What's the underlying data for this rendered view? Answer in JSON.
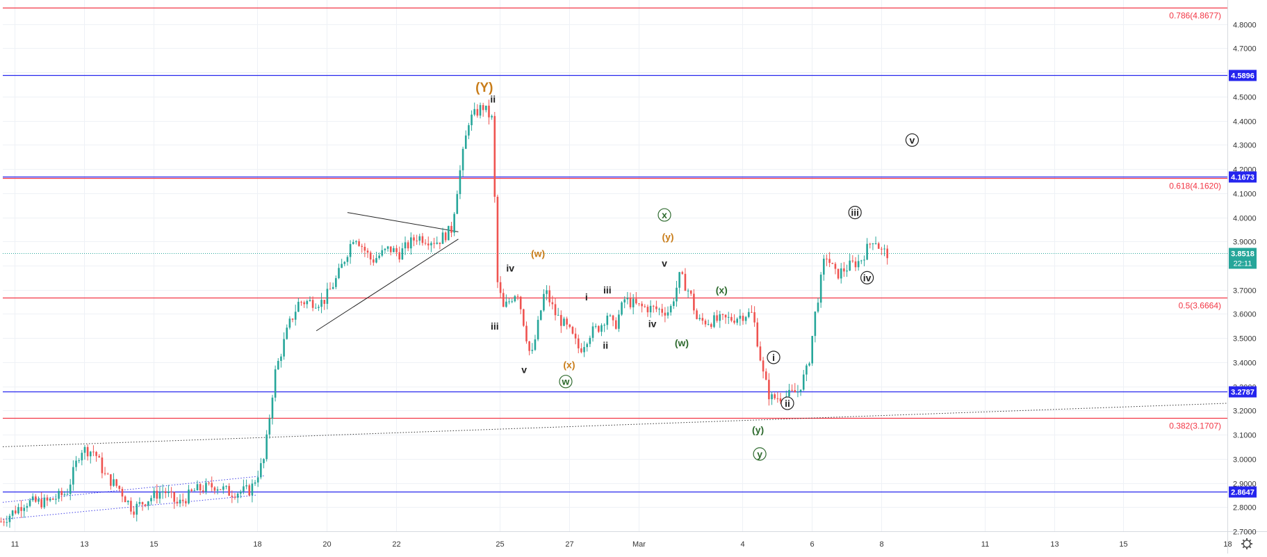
{
  "chart_data": {
    "type": "candlestick",
    "x_axis": {
      "ticks": [
        {
          "label": "11",
          "day": 0
        },
        {
          "label": "13",
          "day": 2
        },
        {
          "label": "15",
          "day": 4
        },
        {
          "label": "18",
          "day": 7
        },
        {
          "label": "20",
          "day": 9
        },
        {
          "label": "22",
          "day": 11
        },
        {
          "label": "25",
          "day": 14
        },
        {
          "label": "27",
          "day": 16
        },
        {
          "label": "Mar",
          "day": 18
        },
        {
          "label": "4",
          "day": 21
        },
        {
          "label": "6",
          "day": 23
        },
        {
          "label": "8",
          "day": 25
        },
        {
          "label": "11",
          "day": 28
        },
        {
          "label": "13",
          "day": 30
        },
        {
          "label": "15",
          "day": 32
        },
        {
          "label": "18",
          "day": 35
        }
      ],
      "range": [
        -0.35,
        35
      ]
    },
    "y_axis": {
      "range": [
        2.7,
        4.9
      ],
      "ticks": [
        "2.7000",
        "2.8000",
        "2.9000",
        "3.0000",
        "3.1000",
        "3.2000",
        "3.3000",
        "3.4000",
        "3.5000",
        "3.6000",
        "3.7000",
        "3.8000",
        "3.9000",
        "4.0000",
        "4.1000",
        "4.2000",
        "4.3000",
        "4.4000",
        "4.5000",
        "4.6000",
        "4.7000",
        "4.8000"
      ]
    },
    "price_path": [
      [
        -0.4,
        2.74
      ],
      [
        0.3,
        2.82
      ],
      [
        0.9,
        2.82
      ],
      [
        1.5,
        2.86
      ],
      [
        1.9,
        3.04
      ],
      [
        2.3,
        3.03
      ],
      [
        2.6,
        2.93
      ],
      [
        3.0,
        2.88
      ],
      [
        3.4,
        2.79
      ],
      [
        3.8,
        2.83
      ],
      [
        4.3,
        2.87
      ],
      [
        4.7,
        2.81
      ],
      [
        5.2,
        2.87
      ],
      [
        5.8,
        2.89
      ],
      [
        6.2,
        2.86
      ],
      [
        6.8,
        2.87
      ],
      [
        7.2,
        3.0
      ],
      [
        7.5,
        3.35
      ],
      [
        7.9,
        3.55
      ],
      [
        8.2,
        3.65
      ],
      [
        8.9,
        3.65
      ],
      [
        9.3,
        3.75
      ],
      [
        9.8,
        3.93
      ],
      [
        10.3,
        3.82
      ],
      [
        10.8,
        3.87
      ],
      [
        11.1,
        3.85
      ],
      [
        11.6,
        3.92
      ],
      [
        12.2,
        3.9
      ],
      [
        12.6,
        3.95
      ],
      [
        12.8,
        4.15
      ],
      [
        13.1,
        4.4
      ],
      [
        13.5,
        4.46
      ],
      [
        13.8,
        4.4
      ],
      [
        13.9,
        3.75
      ],
      [
        14.1,
        3.62
      ],
      [
        14.5,
        3.7
      ],
      [
        14.9,
        3.41
      ],
      [
        15.3,
        3.7
      ],
      [
        15.6,
        3.6
      ],
      [
        16.0,
        3.53
      ],
      [
        16.3,
        3.45
      ],
      [
        16.6,
        3.52
      ],
      [
        16.9,
        3.55
      ],
      [
        17.1,
        3.6
      ],
      [
        17.3,
        3.54
      ],
      [
        17.6,
        3.66
      ],
      [
        18.0,
        3.63
      ],
      [
        18.5,
        3.62
      ],
      [
        18.9,
        3.61
      ],
      [
        19.2,
        3.76
      ],
      [
        19.5,
        3.68
      ],
      [
        19.7,
        3.57
      ],
      [
        20.1,
        3.57
      ],
      [
        20.7,
        3.58
      ],
      [
        21.1,
        3.6
      ],
      [
        21.3,
        3.6
      ],
      [
        21.6,
        3.35
      ],
      [
        21.8,
        3.25
      ],
      [
        22.3,
        3.26
      ],
      [
        22.6,
        3.28
      ],
      [
        22.9,
        3.38
      ],
      [
        23.1,
        3.6
      ],
      [
        23.4,
        3.85
      ],
      [
        23.7,
        3.76
      ],
      [
        24.1,
        3.8
      ],
      [
        24.4,
        3.82
      ],
      [
        24.8,
        3.92
      ],
      [
        25.0,
        3.86
      ],
      [
        25.2,
        3.85
      ]
    ],
    "horizontal_levels": [
      {
        "value": 4.8677,
        "color": "#f23645",
        "label": "0.786(4.8677)",
        "label_style": "text"
      },
      {
        "value": 4.5896,
        "color": "#2525ee",
        "label": "4.5896",
        "label_style": "box"
      },
      {
        "value": 4.1673,
        "color": "#2525ee",
        "label": "4.1673",
        "label_style": "box"
      },
      {
        "value": 4.162,
        "color": "#f23645",
        "label": "0.618(4.1620)",
        "label_style": "text"
      },
      {
        "value": 3.6664,
        "color": "#f23645",
        "label": "0.5(3.6664)",
        "label_style": "text"
      },
      {
        "value": 3.2787,
        "color": "#2525ee",
        "label": "3.2787",
        "label_style": "box"
      },
      {
        "value": 3.1707,
        "color": "#f23645",
        "label": "0.382(3.1707)",
        "label_style": "text"
      },
      {
        "value": 2.8647,
        "color": "#2525ee",
        "label": "2.8647",
        "label_style": "box"
      }
    ],
    "current_price": {
      "value": 3.8518,
      "label": "3.8518",
      "countdown": "22:11",
      "color": "#26a69a"
    },
    "trendlines": [
      {
        "from": [
          -0.35,
          3.05
        ],
        "to": [
          35,
          3.23
        ],
        "color": "#333333",
        "style": "dotted"
      },
      {
        "from": [
          -0.35,
          2.75
        ],
        "to": [
          7.0,
          2.85
        ],
        "color": "#3f3fe6",
        "style": "dotted"
      },
      {
        "from": [
          -0.35,
          2.82
        ],
        "to": [
          7.2,
          2.93
        ],
        "color": "#3f3fe6",
        "style": "dotted"
      },
      {
        "from": [
          8.7,
          3.53
        ],
        "to": [
          12.8,
          3.91
        ],
        "color": "#222222",
        "style": "solid"
      },
      {
        "from": [
          9.6,
          4.02
        ],
        "to": [
          12.8,
          3.94
        ],
        "color": "#222222",
        "style": "solid"
      }
    ],
    "wave_labels": [
      {
        "text": "(Y)",
        "day": 13.55,
        "price": 4.54,
        "color": "#c97d1a",
        "style": "plain",
        "size": 19
      },
      {
        "text": "ii",
        "day": 13.8,
        "price": 4.49,
        "color": "#222222",
        "style": "plain",
        "size": 14
      },
      {
        "text": "iv",
        "day": 14.3,
        "price": 3.79,
        "color": "#222222",
        "style": "plain",
        "size": 14
      },
      {
        "text": "iii",
        "day": 13.85,
        "price": 3.55,
        "color": "#222222",
        "style": "plain",
        "size": 14
      },
      {
        "text": "(w)",
        "day": 15.1,
        "price": 3.85,
        "color": "#c97d1a",
        "style": "plain",
        "size": 14
      },
      {
        "text": "v",
        "day": 14.7,
        "price": 3.37,
        "color": "#222222",
        "style": "plain",
        "size": 14
      },
      {
        "text": "(x)",
        "day": 16.0,
        "price": 3.39,
        "color": "#c97d1a",
        "style": "plain",
        "size": 14
      },
      {
        "text": "w",
        "day": 15.9,
        "price": 3.32,
        "color": "#2e6a2e",
        "style": "circle",
        "size": 14
      },
      {
        "text": "i",
        "day": 16.5,
        "price": 3.67,
        "color": "#222222",
        "style": "plain",
        "size": 14
      },
      {
        "text": "iii",
        "day": 17.1,
        "price": 3.7,
        "color": "#222222",
        "style": "plain",
        "size": 14
      },
      {
        "text": "ii",
        "day": 17.05,
        "price": 3.47,
        "color": "#222222",
        "style": "plain",
        "size": 14
      },
      {
        "text": "iv",
        "day": 18.4,
        "price": 3.56,
        "color": "#222222",
        "style": "plain",
        "size": 14
      },
      {
        "text": "v",
        "day": 18.75,
        "price": 3.81,
        "color": "#222222",
        "style": "plain",
        "size": 14
      },
      {
        "text": "x",
        "day": 18.75,
        "price": 4.01,
        "color": "#2e6a2e",
        "style": "circle",
        "size": 14
      },
      {
        "text": "(y)",
        "day": 18.85,
        "price": 3.92,
        "color": "#c97d1a",
        "style": "plain",
        "size": 14
      },
      {
        "text": "(w)",
        "day": 19.25,
        "price": 3.48,
        "color": "#2e6a2e",
        "style": "plain",
        "size": 14
      },
      {
        "text": "(x)",
        "day": 20.4,
        "price": 3.7,
        "color": "#2e6a2e",
        "style": "plain",
        "size": 14
      },
      {
        "text": "i",
        "day": 21.9,
        "price": 3.42,
        "color": "#222222",
        "style": "circle",
        "size": 14
      },
      {
        "text": "ii",
        "day": 22.3,
        "price": 3.23,
        "color": "#222222",
        "style": "circle",
        "size": 14
      },
      {
        "text": "(y)",
        "day": 21.45,
        "price": 3.12,
        "color": "#2e6a2e",
        "style": "plain",
        "size": 14
      },
      {
        "text": "y",
        "day": 21.5,
        "price": 3.02,
        "color": "#2e6a2e",
        "style": "circle",
        "size": 14
      },
      {
        "text": "iii",
        "day": 24.25,
        "price": 4.02,
        "color": "#222222",
        "style": "circle",
        "size": 14
      },
      {
        "text": "iv",
        "day": 24.6,
        "price": 3.75,
        "color": "#222222",
        "style": "circle",
        "size": 14
      },
      {
        "text": "v",
        "day": 25.9,
        "price": 4.32,
        "color": "#222222",
        "style": "circle",
        "size": 14
      }
    ],
    "colors": {
      "up": "#26a69a",
      "down": "#ef5350",
      "grid": "#eef1f6",
      "axis_text": "#333333"
    }
  }
}
